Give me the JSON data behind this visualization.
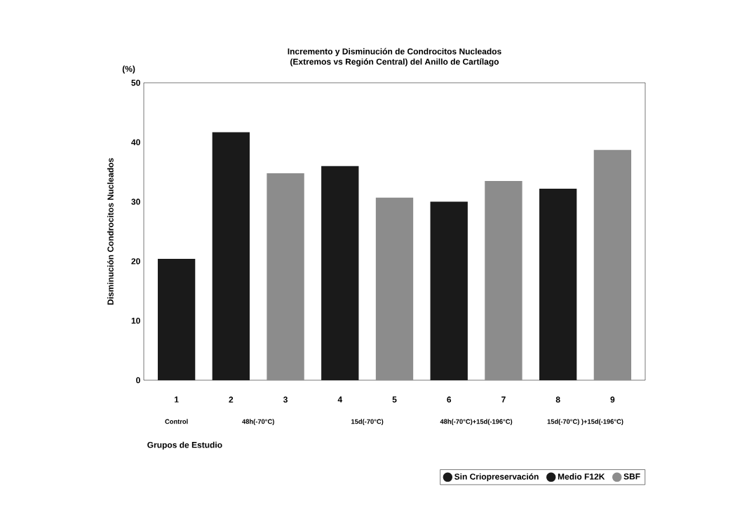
{
  "chart_data": {
    "type": "bar",
    "title": "Incremento y Disminución de Condrocitos Nucleados",
    "subtitle": "(Extremos vs Región Central) del Anillo de Cartílago",
    "xlabel": "Grupos de Estudio",
    "ylabel": "Disminución Condrocitos Nucleados",
    "annotations": [
      "(%)",
      "Control",
      "48h(-70°C)",
      "15d(-70°C)",
      "48h(-70°C)+15d(-196°C)",
      "15d(-70°C) )+15d(-196°C)"
    ],
    "categories": [
      "1",
      "2",
      "3",
      "4",
      "5",
      "6",
      "7",
      "8",
      "9"
    ],
    "series": [
      {
        "name": "Sin Criopreservación",
        "color": "#1a1a1a",
        "values": [
          20.4,
          null,
          null,
          null,
          null,
          null,
          null,
          null,
          null
        ]
      },
      {
        "name": "Medio F12K",
        "color": "#1a1a1a",
        "values": [
          null,
          41.7,
          null,
          36.0,
          null,
          30.0,
          null,
          32.2,
          null
        ]
      },
      {
        "name": "SBF",
        "color": "#8c8c8c",
        "values": [
          null,
          null,
          34.8,
          null,
          30.7,
          null,
          33.5,
          null,
          38.7
        ]
      }
    ],
    "ylim": [
      0,
      50
    ],
    "yticks": [
      0,
      10,
      20,
      30,
      40,
      50
    ],
    "grid": false,
    "legend": "bottom right",
    "marker": "circle"
  }
}
